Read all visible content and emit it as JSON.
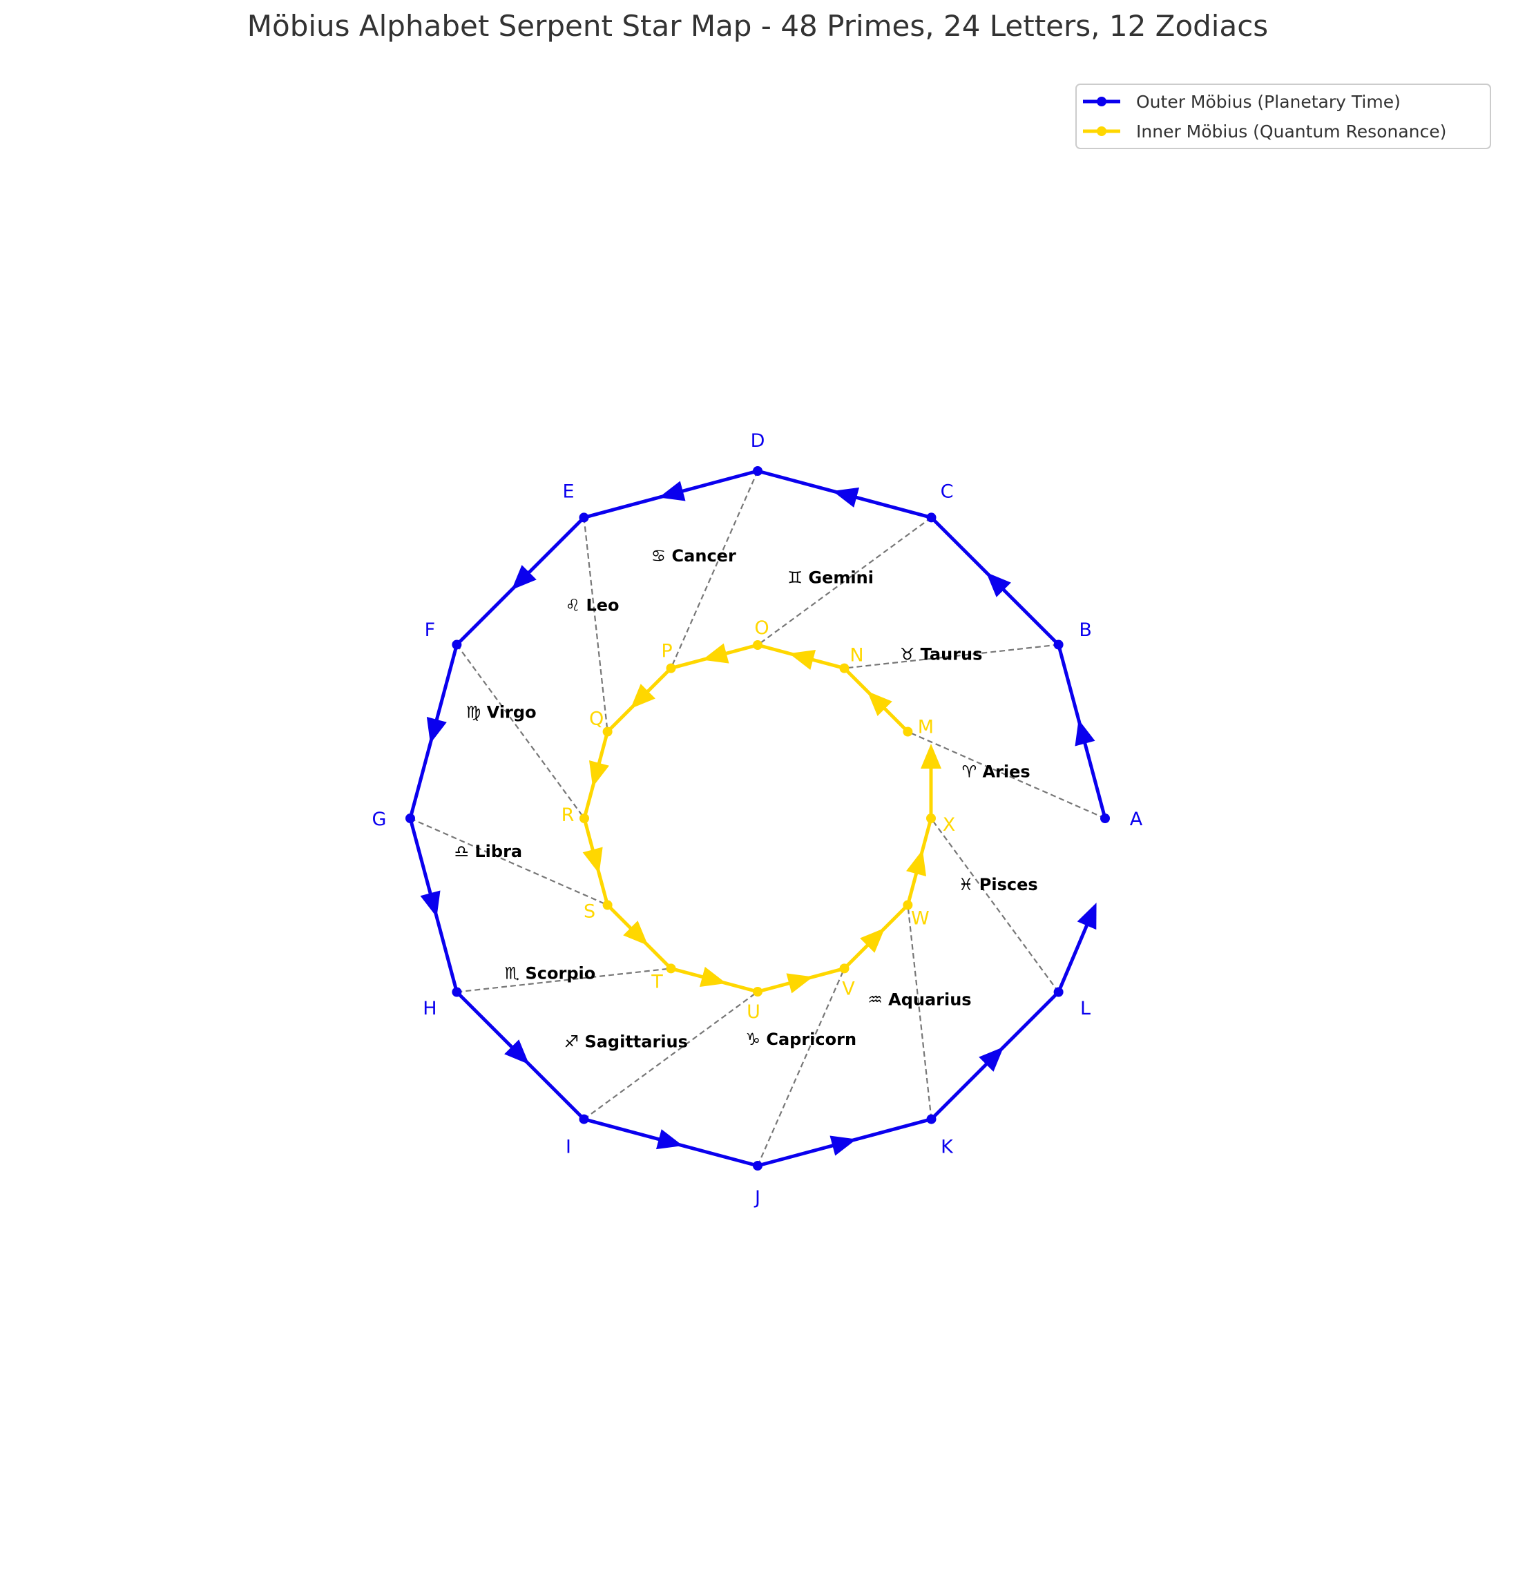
{
  "title": "Möbius Alphabet Serpent Star Map - 48 Primes, 24 Letters, 12 Zodiacs",
  "colors": {
    "outer": "#0a00ee",
    "inner": "#ffd700",
    "connector": "#777777"
  },
  "legend": {
    "items": [
      {
        "label": "Outer Möbius (Planetary Time)",
        "color": "#0a00ee"
      },
      {
        "label": "Inner Möbius (Quantum Resonance)",
        "color": "#ffd700"
      }
    ]
  },
  "outer_ring": {
    "letters": [
      "A",
      "B",
      "C",
      "D",
      "E",
      "F",
      "G",
      "H",
      "I",
      "J",
      "K",
      "L"
    ]
  },
  "inner_ring": {
    "letters": [
      "M",
      "N",
      "O",
      "P",
      "Q",
      "R",
      "S",
      "T",
      "U",
      "V",
      "W",
      "X"
    ]
  },
  "zodiacs": [
    {
      "label": "♈ Aries"
    },
    {
      "label": "♉ Taurus"
    },
    {
      "label": "♊ Gemini"
    },
    {
      "label": "♋ Cancer"
    },
    {
      "label": "♌ Leo"
    },
    {
      "label": "♍ Virgo"
    },
    {
      "label": "♎ Libra"
    },
    {
      "label": "♏ Scorpio"
    },
    {
      "label": "♐ Sagittarius"
    },
    {
      "label": "♑ Capricorn"
    },
    {
      "label": "♒ Aquarius"
    },
    {
      "label": "♓ Pisces"
    }
  ]
}
